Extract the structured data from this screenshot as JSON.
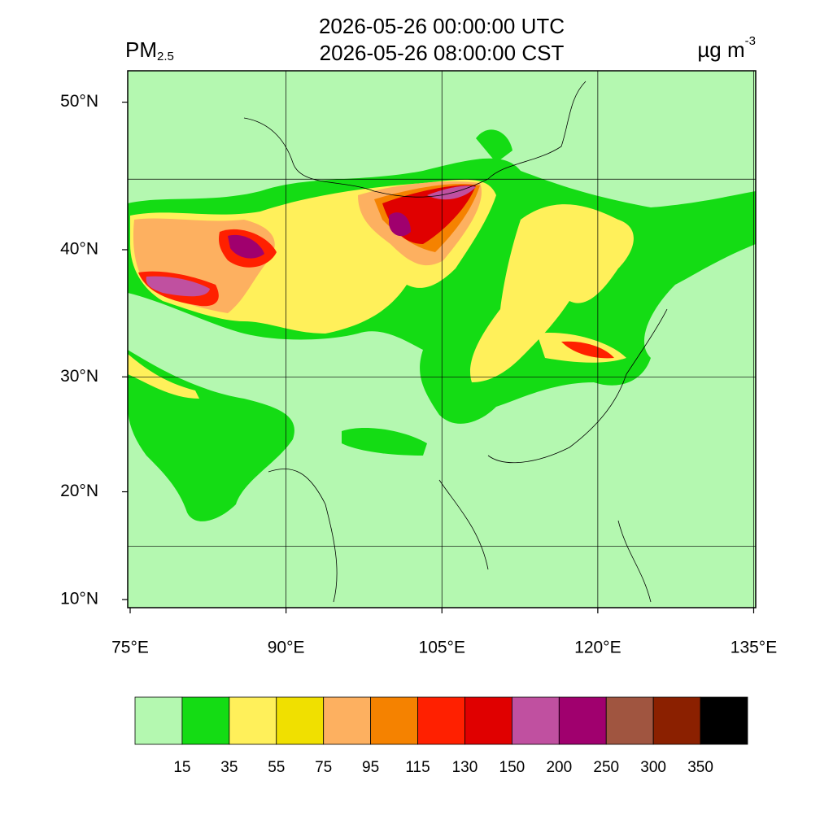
{
  "header": {
    "variable": "PM",
    "variable_subscript": "2.5",
    "title_lines": [
      "2026-05-26 00:00:00 UTC",
      "2026-05-26 08:00:00 CST"
    ],
    "units": "µg m",
    "units_superscript": "-3"
  },
  "map": {
    "lat_ticks": [
      {
        "value": 50,
        "label": "50°N"
      },
      {
        "value": 40,
        "label": "40°N"
      },
      {
        "value": 30,
        "label": "30°N"
      },
      {
        "value": 20,
        "label": "20°N"
      },
      {
        "value": 10,
        "label": "10°N"
      }
    ],
    "lon_ticks": [
      {
        "value": 75,
        "label": "75°E"
      },
      {
        "value": 90,
        "label": "90°E"
      },
      {
        "value": 105,
        "label": "105°E"
      },
      {
        "value": 120,
        "label": "120°E"
      },
      {
        "value": 135,
        "label": "135°E"
      }
    ],
    "grid_step": 15
  },
  "colorbar": {
    "colors": [
      "#b4f8b0",
      "#14dc14",
      "#fff05a",
      "#f0e000",
      "#fdb060",
      "#f58200",
      "#ff2000",
      "#e00000",
      "#c050a0",
      "#a0006e",
      "#a05540",
      "#8b2000",
      "#000000"
    ],
    "levels": [
      15,
      35,
      55,
      75,
      95,
      115,
      130,
      150,
      200,
      250,
      300,
      350
    ]
  }
}
